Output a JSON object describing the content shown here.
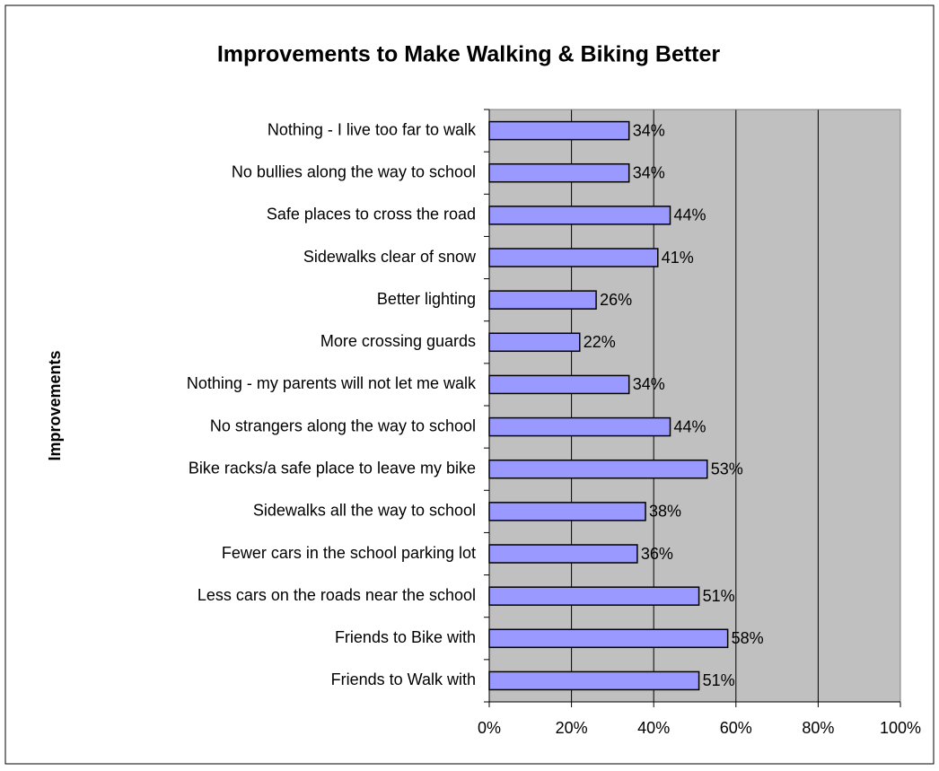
{
  "chart_data": {
    "type": "bar",
    "orientation": "horizontal",
    "title": "Improvements to Make Walking & Biking Better",
    "y_label": "Improvements",
    "categories": [
      "Nothing - I live too far to walk",
      "No bullies along the way to school",
      "Safe places to cross the road",
      "Sidewalks clear of snow",
      "Better lighting",
      "More crossing guards",
      "Nothing - my parents will not let me walk",
      "No strangers along the way to school",
      "Bike racks/a safe place to leave my bike",
      "Sidewalks all the way to school",
      "Fewer cars in the school parking lot",
      "Less cars on the roads near the school",
      "Friends to Bike with",
      "Friends to Walk with"
    ],
    "values": [
      34,
      34,
      44,
      41,
      26,
      22,
      34,
      44,
      53,
      38,
      36,
      51,
      58,
      51
    ],
    "value_labels": [
      "34%",
      "34%",
      "44%",
      "41%",
      "26%",
      "22%",
      "34%",
      "44%",
      "53%",
      "38%",
      "36%",
      "51%",
      "58%",
      "51%"
    ],
    "color": "#9999ff",
    "plot_background": "#c0c0c0",
    "xlim": [
      0,
      100
    ],
    "xticks": [
      {
        "value": 0,
        "label": "0%"
      },
      {
        "value": 20,
        "label": "20%"
      },
      {
        "value": 40,
        "label": "40%"
      },
      {
        "value": 60,
        "label": "60%"
      },
      {
        "value": 80,
        "label": "80%"
      },
      {
        "value": 100,
        "label": "100%"
      }
    ],
    "grid": true
  }
}
